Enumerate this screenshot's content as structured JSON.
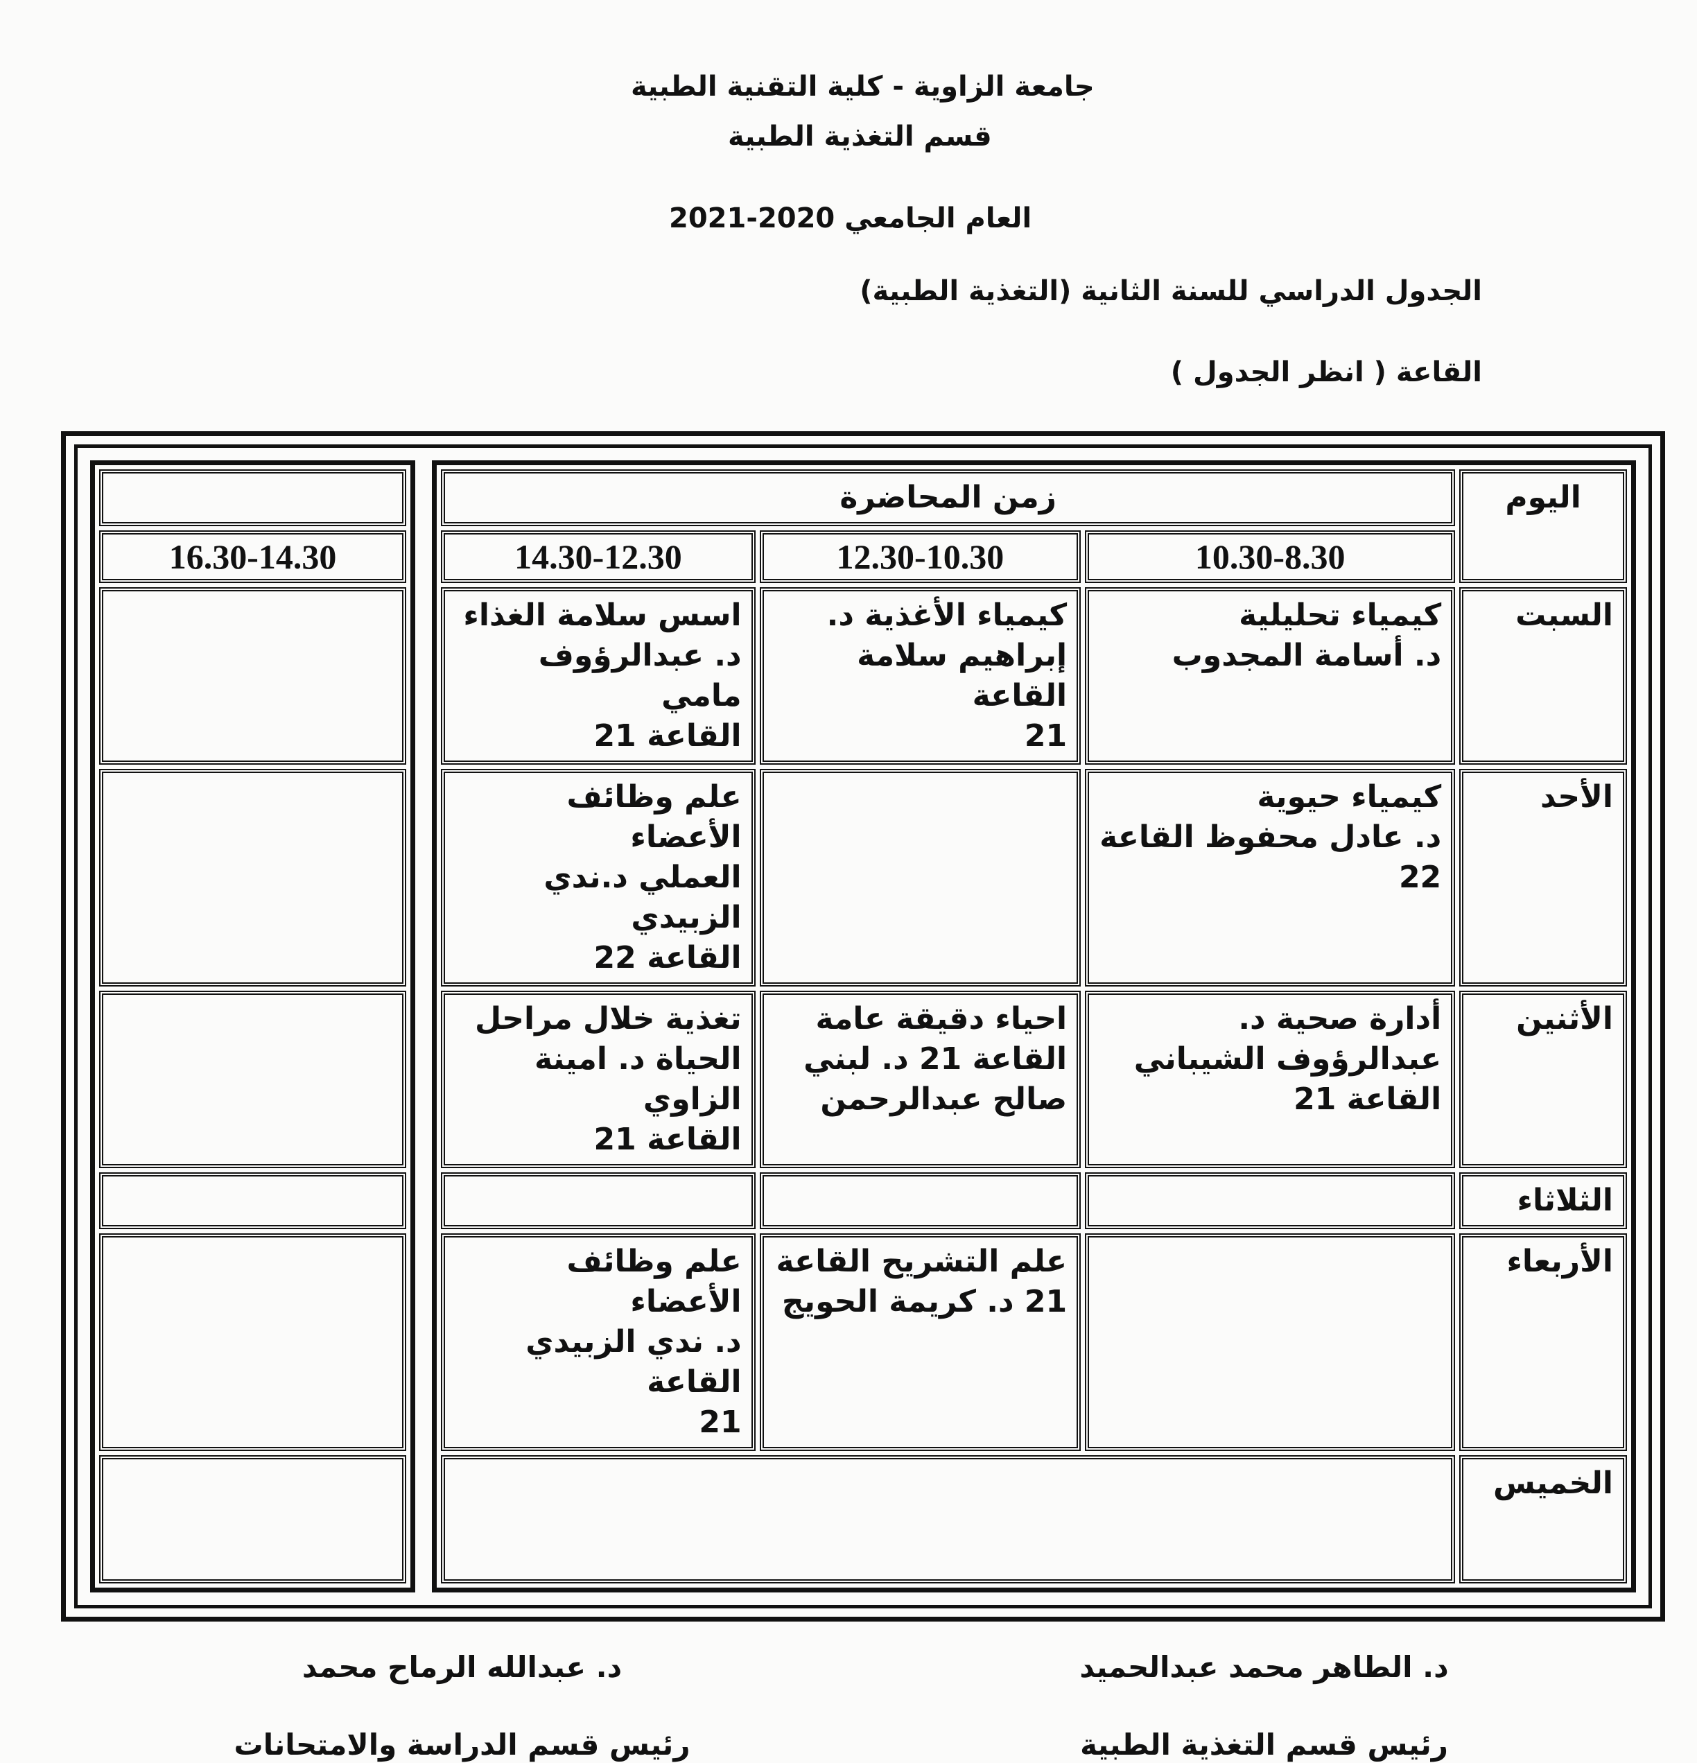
{
  "header": {
    "university": "جامعة الزاوية - كلية التقنية الطبية",
    "department": "قسم التغذية الطبية",
    "academic_year": "العام الجامعي 2020-2021",
    "schedule_title": "الجدول الدراسي للسنة الثانية    (التغذية الطبية)",
    "hall": "القاعة (  انظر الجدول  )"
  },
  "table": {
    "day_header": "اليوم",
    "time_header": "زمن المحاضرة",
    "times": [
      "10.30-8.30",
      "12.30-10.30",
      "14.30-12.30",
      "16.30-14.30"
    ],
    "rows": [
      {
        "day": "السبت",
        "cells": [
          "كيمياء تحليلية\nد. أسامة المجدوب",
          "كيمياء الأغذية    د.\nإبراهيم سلامة  القاعة\n21",
          "اسس سلامة الغذاء\nد. عبدالرؤوف مامي\nالقاعة 21",
          ""
        ]
      },
      {
        "day": "الأحد",
        "cells": [
          "كيمياء حيوية\nد. عادل محفوظ   القاعة\n22",
          "",
          "علم وظائف الأعضاء\nالعملي د.ندي الزبيدي\nالقاعة 22",
          ""
        ]
      },
      {
        "day": "الأثنين",
        "cells": [
          "أدارة صحية  د.\nعبدالرؤوف الشيباني\nالقاعة 21",
          "احياء دقيقة عامة\nالقاعة 21  د. لبني\nصالح عبدالرحمن",
          "تغذية خلال مراحل\nالحياة د. امينة الزاوي\nالقاعة 21",
          ""
        ]
      },
      {
        "day": "الثلاثاء",
        "cells": [
          "",
          "",
          "",
          ""
        ]
      },
      {
        "day": "الأربعاء",
        "cells": [
          "",
          "علم التشريح القاعة\n21  د. كريمة الحويج",
          "علم وظائف الأعضاء\nد. ندي الزبيدي القاعة\n21",
          ""
        ]
      },
      {
        "day": "الخميس",
        "cells": [
          "",
          "",
          "",
          ""
        ]
      }
    ]
  },
  "signatures": {
    "right_name": "د. الطاهر محمد عبدالحميد",
    "right_title": "رئيس قسم التغذية الطبية",
    "left_name": "د. عبدالله الرماح محمد",
    "left_title": "رئيس قسم الدراسة والامتحانات"
  }
}
